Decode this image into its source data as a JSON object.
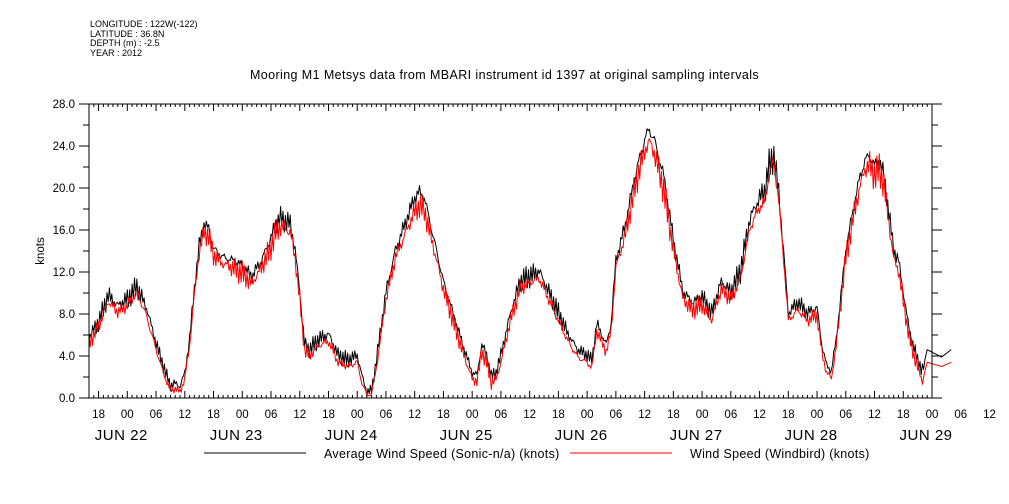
{
  "meta": {
    "longitude": "LONGITUDE : 122W(-122)",
    "latitude": "LATITUDE : 36.8N",
    "depth": "DEPTH (m) : -2.5",
    "year": "YEAR : 2012"
  },
  "chart_data": {
    "type": "line",
    "title": "Mooring M1 Metsys data from MBARI instrument id 1397 at original sampling intervals",
    "ylabel": "knots",
    "xlabel": "",
    "ylim": [
      0,
      28
    ],
    "y_ticks": [
      "0.0",
      "4.0",
      "8.0",
      "12.0",
      "16.0",
      "20.0",
      "24.0",
      "28.0"
    ],
    "x_range_hours": [
      -8,
      168
    ],
    "hour_ticks": [
      "18",
      "00",
      "06",
      "12",
      "18",
      "00",
      "06",
      "12",
      "18",
      "00",
      "06",
      "12",
      "18",
      "00",
      "06",
      "12",
      "18",
      "00",
      "06",
      "12",
      "18",
      "00",
      "06",
      "12",
      "18",
      "00",
      "06",
      "12",
      "18",
      "00",
      "06",
      "12"
    ],
    "day_labels": [
      "JUN 22",
      "JUN 23",
      "JUN 24",
      "JUN 25",
      "JUN 26",
      "JUN 27",
      "JUN 28",
      "JUN 29"
    ],
    "grid": false,
    "legend_placement": "bottom",
    "series": [
      {
        "name": "Average Wind Speed (Sonic-n/a) (knots)",
        "color": "#000000",
        "points": [
          [
            -8,
            5.8
          ],
          [
            -6,
            7.2
          ],
          [
            -4,
            9.8
          ],
          [
            -2,
            8.8
          ],
          [
            0,
            9.4
          ],
          [
            2,
            10.6
          ],
          [
            4,
            8.6
          ],
          [
            6,
            5.2
          ],
          [
            8,
            2.4
          ],
          [
            9,
            1.2
          ],
          [
            10,
            1.4
          ],
          [
            11,
            1.1
          ],
          [
            12,
            2.4
          ],
          [
            13,
            5.6
          ],
          [
            14,
            10.5
          ],
          [
            15,
            14.5
          ],
          [
            16,
            16.6
          ],
          [
            17,
            16.1
          ],
          [
            18,
            14.2
          ],
          [
            20,
            13.4
          ],
          [
            22,
            13.1
          ],
          [
            24,
            12.6
          ],
          [
            26,
            11.6
          ],
          [
            28,
            13.1
          ],
          [
            30,
            15.2
          ],
          [
            31,
            16.6
          ],
          [
            32,
            17.1
          ],
          [
            34,
            16.6
          ],
          [
            35,
            14.2
          ],
          [
            36,
            10.1
          ],
          [
            37,
            5.2
          ],
          [
            38,
            4.6
          ],
          [
            40,
            5.6
          ],
          [
            42,
            6.1
          ],
          [
            44,
            4.1
          ],
          [
            46,
            3.6
          ],
          [
            48,
            4.1
          ],
          [
            49,
            2.1
          ],
          [
            50,
            0.6
          ],
          [
            51,
            0.7
          ],
          [
            52,
            3.6
          ],
          [
            54,
            10.1
          ],
          [
            56,
            14.1
          ],
          [
            58,
            16.6
          ],
          [
            60,
            19.1
          ],
          [
            61,
            19.6
          ],
          [
            62,
            19.1
          ],
          [
            64,
            15.1
          ],
          [
            66,
            11.1
          ],
          [
            68,
            8.1
          ],
          [
            70,
            5.1
          ],
          [
            72,
            2.4
          ],
          [
            73,
            2.2
          ],
          [
            74,
            5.1
          ],
          [
            75,
            4.1
          ],
          [
            76,
            2.1
          ],
          [
            77,
            2.4
          ],
          [
            78,
            4.1
          ],
          [
            80,
            8.1
          ],
          [
            82,
            11.1
          ],
          [
            84,
            11.6
          ],
          [
            86,
            12.1
          ],
          [
            88,
            10.1
          ],
          [
            90,
            8.1
          ],
          [
            92,
            6.1
          ],
          [
            94,
            4.6
          ],
          [
            96,
            4.1
          ],
          [
            97,
            3.6
          ],
          [
            98,
            7.1
          ],
          [
            99,
            6.1
          ],
          [
            100,
            5.1
          ],
          [
            101,
            7.1
          ],
          [
            102,
            13.1
          ],
          [
            104,
            16.6
          ],
          [
            106,
            21.1
          ],
          [
            108,
            24.6
          ],
          [
            109,
            25.6
          ],
          [
            110,
            24.6
          ],
          [
            112,
            21.1
          ],
          [
            114,
            15.1
          ],
          [
            116,
            10.1
          ],
          [
            118,
            9.1
          ],
          [
            120,
            9.6
          ],
          [
            122,
            8.1
          ],
          [
            124,
            11.1
          ],
          [
            126,
            10.1
          ],
          [
            128,
            12.1
          ],
          [
            130,
            17.1
          ],
          [
            132,
            19.1
          ],
          [
            133,
            19.6
          ],
          [
            134,
            22.1
          ],
          [
            135,
            23.1
          ],
          [
            136,
            19.6
          ],
          [
            137,
            14.1
          ],
          [
            138,
            8.1
          ],
          [
            140,
            9.1
          ],
          [
            142,
            8.1
          ],
          [
            144,
            8.6
          ],
          [
            145,
            5.1
          ],
          [
            146,
            3.1
          ],
          [
            147,
            2.6
          ],
          [
            148,
            5.6
          ],
          [
            150,
            14.1
          ],
          [
            152,
            19.1
          ],
          [
            153,
            21.1
          ],
          [
            154,
            22.6
          ],
          [
            155,
            23.1
          ],
          [
            156,
            22.1
          ],
          [
            157,
            22.6
          ],
          [
            158,
            21.1
          ],
          [
            160,
            14.1
          ],
          [
            161,
            13.1
          ],
          [
            162,
            10.1
          ],
          [
            163,
            7.1
          ],
          [
            164,
            5.1
          ],
          [
            165,
            3.6
          ],
          [
            166,
            2.6
          ],
          [
            167,
            4.6
          ],
          [
            170,
            3.9
          ],
          [
            172,
            4.6
          ]
        ]
      },
      {
        "name": "Wind Speed (Windbird) (knots)",
        "color": "#ff0000",
        "points": [
          [
            -8,
            5.2
          ],
          [
            -6,
            6.8
          ],
          [
            -4,
            9.2
          ],
          [
            -2,
            8.2
          ],
          [
            0,
            8.8
          ],
          [
            2,
            10.1
          ],
          [
            4,
            7.8
          ],
          [
            6,
            4.6
          ],
          [
            8,
            1.8
          ],
          [
            9,
            0.7
          ],
          [
            10,
            0.9
          ],
          [
            11,
            0.6
          ],
          [
            12,
            1.8
          ],
          [
            13,
            5.0
          ],
          [
            14,
            9.8
          ],
          [
            15,
            13.8
          ],
          [
            16,
            15.8
          ],
          [
            17,
            15.4
          ],
          [
            18,
            13.6
          ],
          [
            20,
            12.8
          ],
          [
            22,
            12.4
          ],
          [
            24,
            11.9
          ],
          [
            26,
            10.9
          ],
          [
            28,
            12.4
          ],
          [
            30,
            14.4
          ],
          [
            31,
            15.8
          ],
          [
            32,
            16.4
          ],
          [
            34,
            15.8
          ],
          [
            35,
            13.4
          ],
          [
            36,
            9.4
          ],
          [
            37,
            4.6
          ],
          [
            38,
            4.0
          ],
          [
            40,
            5.0
          ],
          [
            42,
            5.4
          ],
          [
            44,
            3.4
          ],
          [
            46,
            3.0
          ],
          [
            48,
            3.4
          ],
          [
            49,
            1.4
          ],
          [
            50,
            0.3
          ],
          [
            51,
            0.4
          ],
          [
            52,
            2.9
          ],
          [
            54,
            9.4
          ],
          [
            56,
            13.4
          ],
          [
            58,
            15.6
          ],
          [
            60,
            17.8
          ],
          [
            61,
            18.3
          ],
          [
            62,
            17.9
          ],
          [
            64,
            14.2
          ],
          [
            66,
            10.4
          ],
          [
            68,
            7.4
          ],
          [
            70,
            4.4
          ],
          [
            72,
            1.8
          ],
          [
            73,
            1.6
          ],
          [
            74,
            4.4
          ],
          [
            75,
            3.4
          ],
          [
            76,
            1.4
          ],
          [
            77,
            1.8
          ],
          [
            78,
            3.4
          ],
          [
            80,
            7.4
          ],
          [
            82,
            10.4
          ],
          [
            84,
            11.0
          ],
          [
            86,
            11.4
          ],
          [
            88,
            9.4
          ],
          [
            90,
            7.4
          ],
          [
            92,
            5.4
          ],
          [
            94,
            3.9
          ],
          [
            96,
            3.4
          ],
          [
            97,
            2.9
          ],
          [
            98,
            6.4
          ],
          [
            99,
            5.4
          ],
          [
            100,
            4.4
          ],
          [
            101,
            6.4
          ],
          [
            102,
            12.4
          ],
          [
            104,
            15.6
          ],
          [
            106,
            20.1
          ],
          [
            108,
            23.6
          ],
          [
            109,
            24.4
          ],
          [
            110,
            23.4
          ],
          [
            112,
            19.8
          ],
          [
            114,
            14.2
          ],
          [
            116,
            9.4
          ],
          [
            118,
            8.4
          ],
          [
            120,
            8.9
          ],
          [
            122,
            7.4
          ],
          [
            124,
            10.4
          ],
          [
            126,
            9.4
          ],
          [
            128,
            11.4
          ],
          [
            130,
            16.2
          ],
          [
            132,
            18.2
          ],
          [
            133,
            18.6
          ],
          [
            134,
            21.2
          ],
          [
            135,
            22.6
          ],
          [
            136,
            18.8
          ],
          [
            137,
            13.4
          ],
          [
            138,
            7.4
          ],
          [
            140,
            8.4
          ],
          [
            142,
            7.4
          ],
          [
            144,
            7.9
          ],
          [
            145,
            4.4
          ],
          [
            146,
            2.4
          ],
          [
            147,
            1.9
          ],
          [
            148,
            4.9
          ],
          [
            150,
            13.4
          ],
          [
            152,
            18.2
          ],
          [
            153,
            20.2
          ],
          [
            154,
            21.8
          ],
          [
            155,
            22.2
          ],
          [
            156,
            21.2
          ],
          [
            157,
            21.8
          ],
          [
            158,
            20.2
          ],
          [
            160,
            13.2
          ],
          [
            161,
            12.2
          ],
          [
            162,
            9.2
          ],
          [
            163,
            6.4
          ],
          [
            164,
            4.4
          ],
          [
            165,
            2.9
          ],
          [
            166,
            1.6
          ],
          [
            167,
            3.4
          ],
          [
            170,
            3.0
          ],
          [
            172,
            3.4
          ]
        ]
      }
    ]
  }
}
